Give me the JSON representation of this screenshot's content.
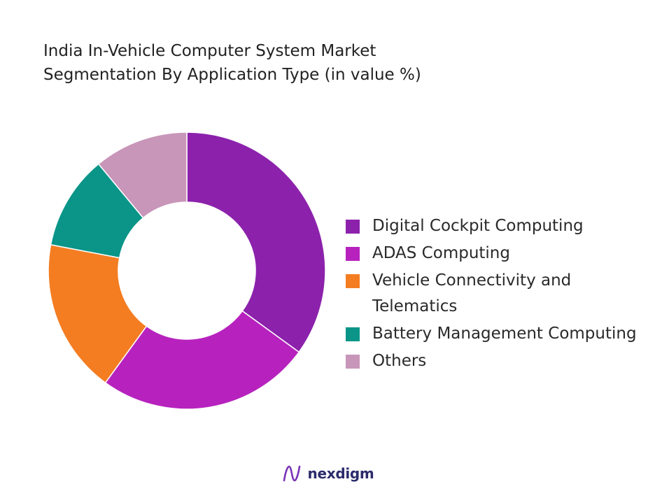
{
  "title_lines": [
    "India In-Vehicle Computer System Market",
    "Segmentation By Application Type (in value %)"
  ],
  "brand": {
    "name": "nexdigm",
    "logo_icon": "nexdigm-logo-icon"
  },
  "chart_data": {
    "type": "pie",
    "donut": true,
    "title": "India In-Vehicle Computer System Market Segmentation By Application Type (in value %)",
    "unit": "%",
    "legend_position": "right",
    "slices": [
      {
        "label": "Digital Cockpit Computing",
        "value": 35,
        "color": "#8C22AC"
      },
      {
        "label": "ADAS Computing",
        "value": 25,
        "color": "#B722BE"
      },
      {
        "label": "Vehicle Connectivity and Telematics",
        "value": 18,
        "color": "#F47D22"
      },
      {
        "label": "Battery Management Computing",
        "value": 11,
        "color": "#0A9588"
      },
      {
        "label": "Others",
        "value": 11,
        "color": "#C896B9"
      }
    ]
  }
}
